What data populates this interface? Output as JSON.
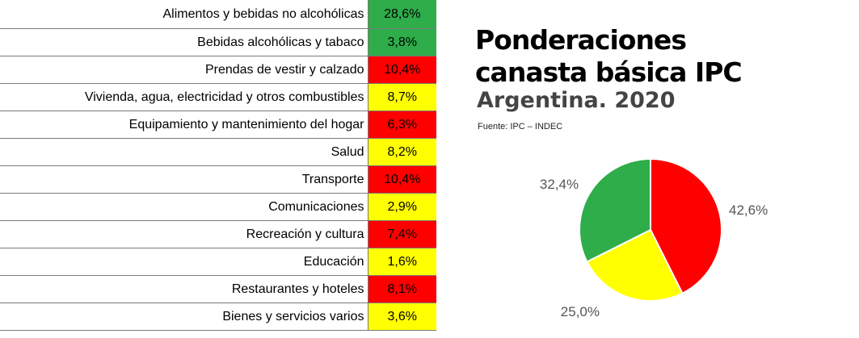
{
  "colors": {
    "green": "#2ead4a",
    "yellow": "#ffff00",
    "red": "#ff0000"
  },
  "header": {
    "title_line1": "Ponderaciones",
    "title_line2": "canasta básica IPC",
    "subtitle": "Argentina. 2020",
    "source": "Fuente: IPC – INDEC"
  },
  "table": {
    "rows": [
      {
        "category": "Alimentos y bebidas no alcohólicas",
        "value": "28,6%",
        "color": "green"
      },
      {
        "category": "Bebidas alcohólicas y tabaco",
        "value": "3,8%",
        "color": "green"
      },
      {
        "category": "Prendas de vestir y calzado",
        "value": "10,4%",
        "color": "red"
      },
      {
        "category": "Vivienda, agua, electricidad y otros combustibles",
        "value": "8,7%",
        "color": "yellow"
      },
      {
        "category": "Equipamiento y mantenimiento del hogar",
        "value": "6,3%",
        "color": "red"
      },
      {
        "category": "Salud",
        "value": "8,2%",
        "color": "yellow"
      },
      {
        "category": "Transporte",
        "value": "10,4%",
        "color": "red"
      },
      {
        "category": "Comunicaciones",
        "value": "2,9%",
        "color": "yellow"
      },
      {
        "category": "Recreación y cultura",
        "value": "7,4%",
        "color": "red"
      },
      {
        "category": "Educación",
        "value": "1,6%",
        "color": "yellow"
      },
      {
        "category": "Restaurantes y hoteles",
        "value": "8,1%",
        "color": "red"
      },
      {
        "category": "Bienes y servicios varios",
        "value": "3,6%",
        "color": "yellow"
      }
    ]
  },
  "chart_data": {
    "type": "pie",
    "title": "",
    "slices": [
      {
        "value": 42.6,
        "label": "42,6%",
        "color": "#ff0000"
      },
      {
        "value": 25.0,
        "label": "25,0%",
        "color": "#ffff00"
      },
      {
        "value": 32.4,
        "label": "32,4%",
        "color": "#2ead4a"
      }
    ]
  }
}
